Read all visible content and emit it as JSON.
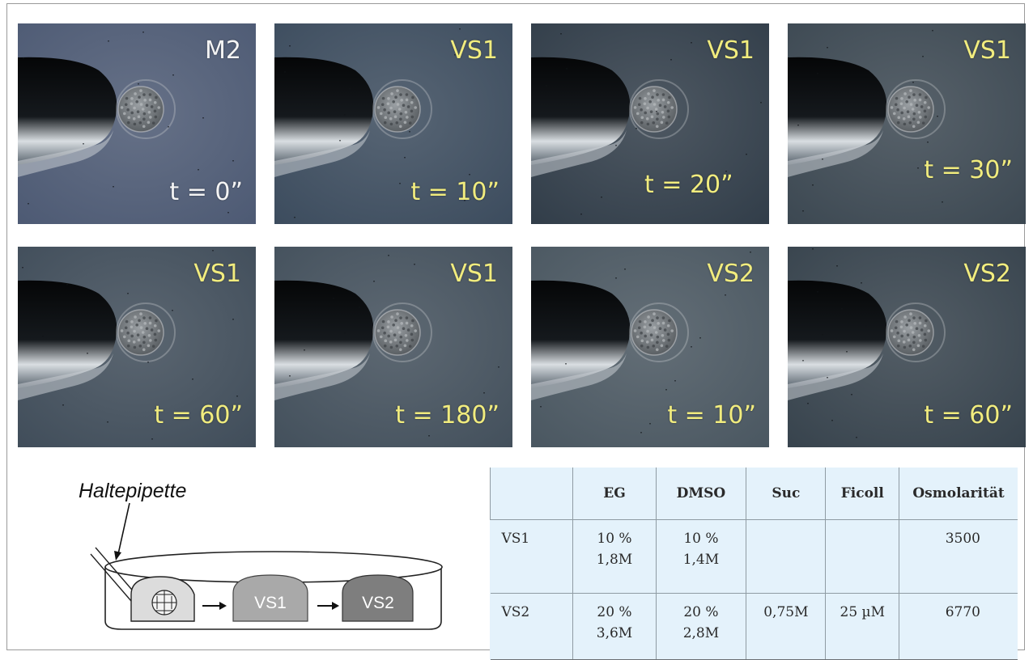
{
  "panels": [
    {
      "solution": "M2",
      "time": "t = 0”",
      "tone": "#4b5872"
    },
    {
      "solution": "VS1",
      "time": "t = 10”",
      "tone": "#3a4a5c"
    },
    {
      "solution": "VS1",
      "time": "t = 20”",
      "tone": "#2f3b47"
    },
    {
      "solution": "VS1",
      "time": "t = 30”",
      "tone": "#3a4650"
    },
    {
      "solution": "VS1",
      "time": "t = 60”",
      "tone": "#3e4b58"
    },
    {
      "solution": "VS1",
      "time": "t = 180”",
      "tone": "#414e5a"
    },
    {
      "solution": "VS2",
      "time": "t = 10”",
      "tone": "#48555f"
    },
    {
      "solution": "VS2",
      "time": "t = 60”",
      "tone": "#35414b"
    }
  ],
  "diagram": {
    "pipette_label": "Haltepipette",
    "dish_labels": [
      "VS1",
      "VS2"
    ],
    "arrow": "→"
  },
  "table": {
    "headers": [
      "",
      "EG",
      "DMSO",
      "Suc",
      "Ficoll",
      "Osmolarität"
    ],
    "rows": [
      {
        "name": "VS1",
        "eg": [
          "10 %",
          "1,8M"
        ],
        "dmso": [
          "10 %",
          "1,4M"
        ],
        "suc": "",
        "ficoll": "",
        "osm": "3500"
      },
      {
        "name": "VS2",
        "eg": [
          "20 %",
          "3,6M"
        ],
        "dmso": [
          "20 %",
          "2,8M"
        ],
        "suc": "0,75M",
        "ficoll": "25 µM",
        "osm": "6770"
      }
    ]
  }
}
